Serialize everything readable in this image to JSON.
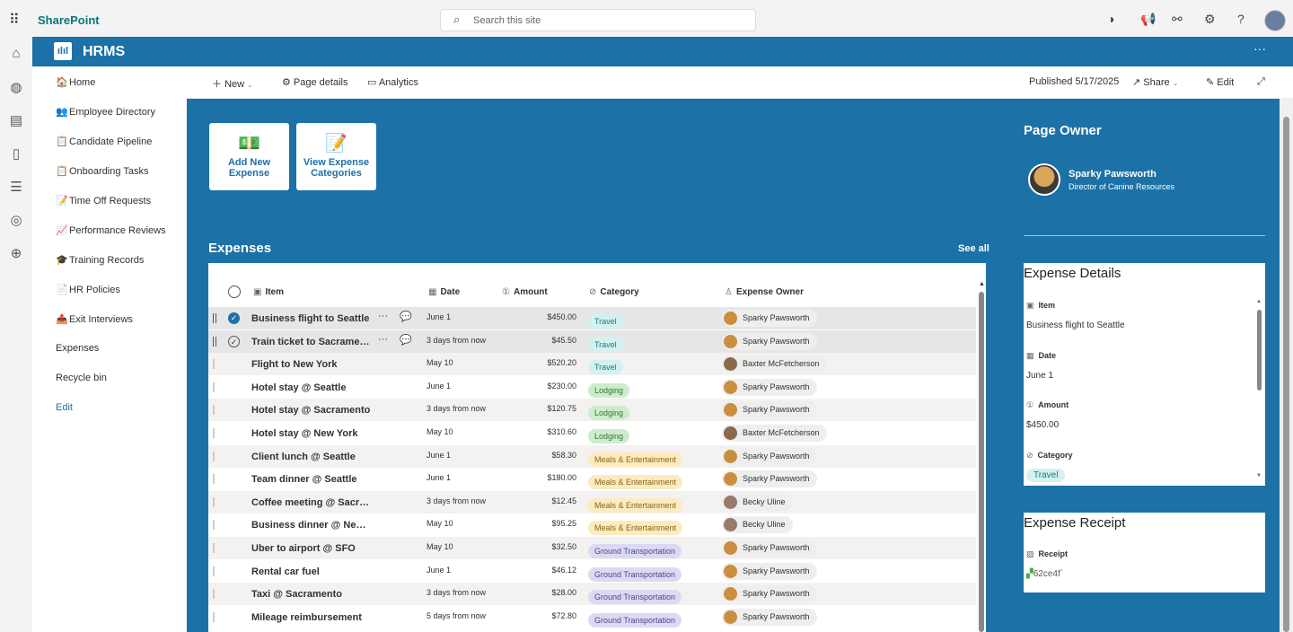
{
  "topbar": {
    "app": "SharePoint",
    "search_placeholder": "Search this site"
  },
  "hub": {
    "title": "HRMS",
    "logo_text": "ılıl"
  },
  "nav": [
    {
      "icon": "🏠",
      "label": "Home"
    },
    {
      "icon": "👥",
      "label": "Employee Directory"
    },
    {
      "icon": "📋",
      "label": "Candidate Pipeline"
    },
    {
      "icon": "📋",
      "label": "Onboarding Tasks"
    },
    {
      "icon": "📝",
      "label": "Time Off Requests"
    },
    {
      "icon": "📈",
      "label": "Performance Reviews"
    },
    {
      "icon": "🎓",
      "label": "Training Records"
    },
    {
      "icon": "📄",
      "label": "HR Policies"
    },
    {
      "icon": "📤",
      "label": "Exit Interviews"
    },
    {
      "icon": "",
      "label": "Expenses"
    },
    {
      "icon": "",
      "label": "Recycle bin"
    },
    {
      "icon": "",
      "label": "Edit"
    }
  ],
  "commandbar": {
    "new": "New",
    "page_details": "Page details",
    "analytics": "Analytics",
    "published": "Published 5/17/2025",
    "share": "Share",
    "edit": "Edit"
  },
  "tiles": [
    {
      "label1": "Add New",
      "label2": "Expense"
    },
    {
      "label1": "View Expense",
      "label2": "Categories"
    }
  ],
  "expenses": {
    "title": "Expenses",
    "see_all": "See all",
    "columns": {
      "item": "Item",
      "date": "Date",
      "amount": "Amount",
      "category": "Category",
      "owner": "Expense Owner"
    },
    "rows": [
      {
        "item": "Business flight to Seattle",
        "date": "June 1",
        "amount": "$450.00",
        "category": "Travel",
        "owner": "Sparky Pawsworth",
        "state": "selected"
      },
      {
        "item": "Train ticket to Sacramento",
        "date": "3 days from now",
        "amount": "$45.50",
        "category": "Travel",
        "owner": "Sparky Pawsworth",
        "state": "hover"
      },
      {
        "item": "Flight to New York",
        "date": "May 10",
        "amount": "$520.20",
        "category": "Travel",
        "owner": "Baxter McFetcherson"
      },
      {
        "item": "Hotel stay @ Seattle",
        "date": "June 1",
        "amount": "$230.00",
        "category": "Lodging",
        "owner": "Sparky Pawsworth"
      },
      {
        "item": "Hotel stay @ Sacramento",
        "date": "3 days from now",
        "amount": "$120.75",
        "category": "Lodging",
        "owner": "Sparky Pawsworth"
      },
      {
        "item": "Hotel stay @ New York",
        "date": "May 10",
        "amount": "$310.60",
        "category": "Lodging",
        "owner": "Baxter McFetcherson"
      },
      {
        "item": "Client lunch @ Seattle",
        "date": "June 1",
        "amount": "$58.30",
        "category": "Meals & Entertainment",
        "owner": "Sparky Pawsworth"
      },
      {
        "item": "Team dinner @ Seattle",
        "date": "June 1",
        "amount": "$180.00",
        "category": "Meals & Entertainment",
        "owner": "Sparky Pawsworth"
      },
      {
        "item": "Coffee meeting @ Sacra...",
        "date": "3 days from now",
        "amount": "$12.45",
        "category": "Meals & Entertainment",
        "owner": "Becky Uline"
      },
      {
        "item": "Business dinner @ New Y...",
        "date": "May 10",
        "amount": "$95.25",
        "category": "Meals & Entertainment",
        "owner": "Becky Uline"
      },
      {
        "item": "Uber to airport @ SFO",
        "date": "May 10",
        "amount": "$32.50",
        "category": "Ground Transportation",
        "owner": "Sparky Pawsworth"
      },
      {
        "item": "Rental car fuel",
        "date": "June 1",
        "amount": "$46.12",
        "category": "Ground Transportation",
        "owner": "Sparky Pawsworth"
      },
      {
        "item": "Taxi @ Sacramento",
        "date": "3 days from now",
        "amount": "$28.00",
        "category": "Ground Transportation",
        "owner": "Sparky Pawsworth"
      },
      {
        "item": "Mileage reimbursement",
        "date": "5 days from now",
        "amount": "$72.80",
        "category": "Ground Transportation",
        "owner": "Sparky Pawsworth"
      }
    ]
  },
  "category_colors": {
    "Travel": {
      "bg": "#d4f1f1",
      "fg": "#1a7a78"
    },
    "Lodging": {
      "bg": "#cdeccd",
      "fg": "#2f7a2f"
    },
    "Meals & Entertainment": {
      "bg": "#fdebc0",
      "fg": "#8a6414"
    },
    "Ground Transportation": {
      "bg": "#dcdaf3",
      "fg": "#4b468a"
    }
  },
  "owner_colors": {
    "Sparky Pawsworth": "#c98f3f",
    "Baxter McFetcherson": "#8a6a4a",
    "Becky Uline": "#9a7a6a"
  },
  "page_owner": {
    "title": "Page Owner",
    "name": "Sparky Pawsworth",
    "role": "Director of Canine Resources"
  },
  "details": {
    "title": "Expense Details",
    "item_label": "Item",
    "item": "Business flight to Seattle",
    "date_label": "Date",
    "date": "June 1",
    "amount_label": "Amount",
    "amount": "$450.00",
    "category_label": "Category",
    "category": "Travel"
  },
  "receipt": {
    "title": "Expense Receipt",
    "label": "Receipt",
    "value": "62ce4f`"
  },
  "colors": {
    "brand": "#1c71a6"
  }
}
